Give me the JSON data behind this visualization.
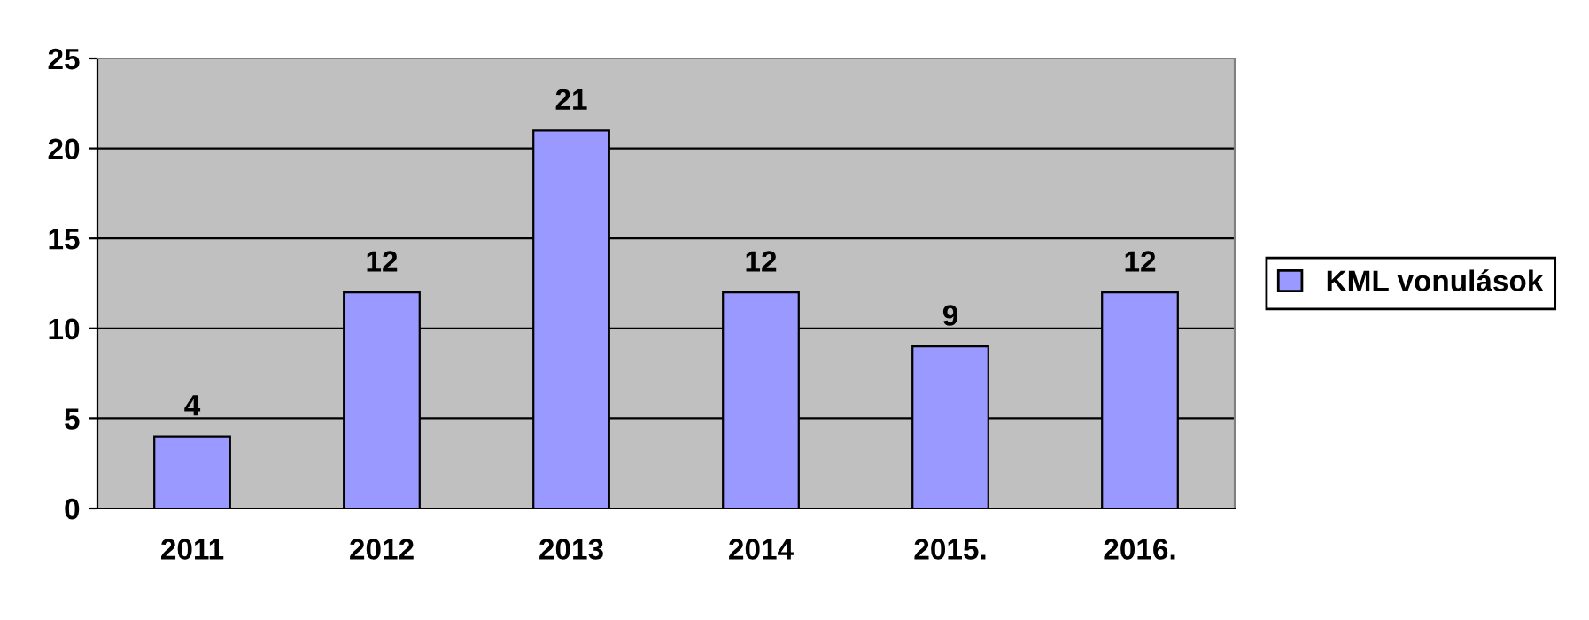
{
  "chart_data": {
    "type": "bar",
    "categories": [
      "2011",
      "2012",
      "2013",
      "2014",
      "2015.",
      "2016."
    ],
    "series": [
      {
        "name": "KML vonulások",
        "color": "#9999ff",
        "values": [
          4,
          12,
          21,
          12,
          9,
          12
        ]
      }
    ],
    "ylim": [
      0,
      25
    ],
    "yticks": [
      0,
      5,
      10,
      15,
      20,
      25
    ],
    "grid": "y",
    "legend": "right",
    "data_labels": true
  }
}
